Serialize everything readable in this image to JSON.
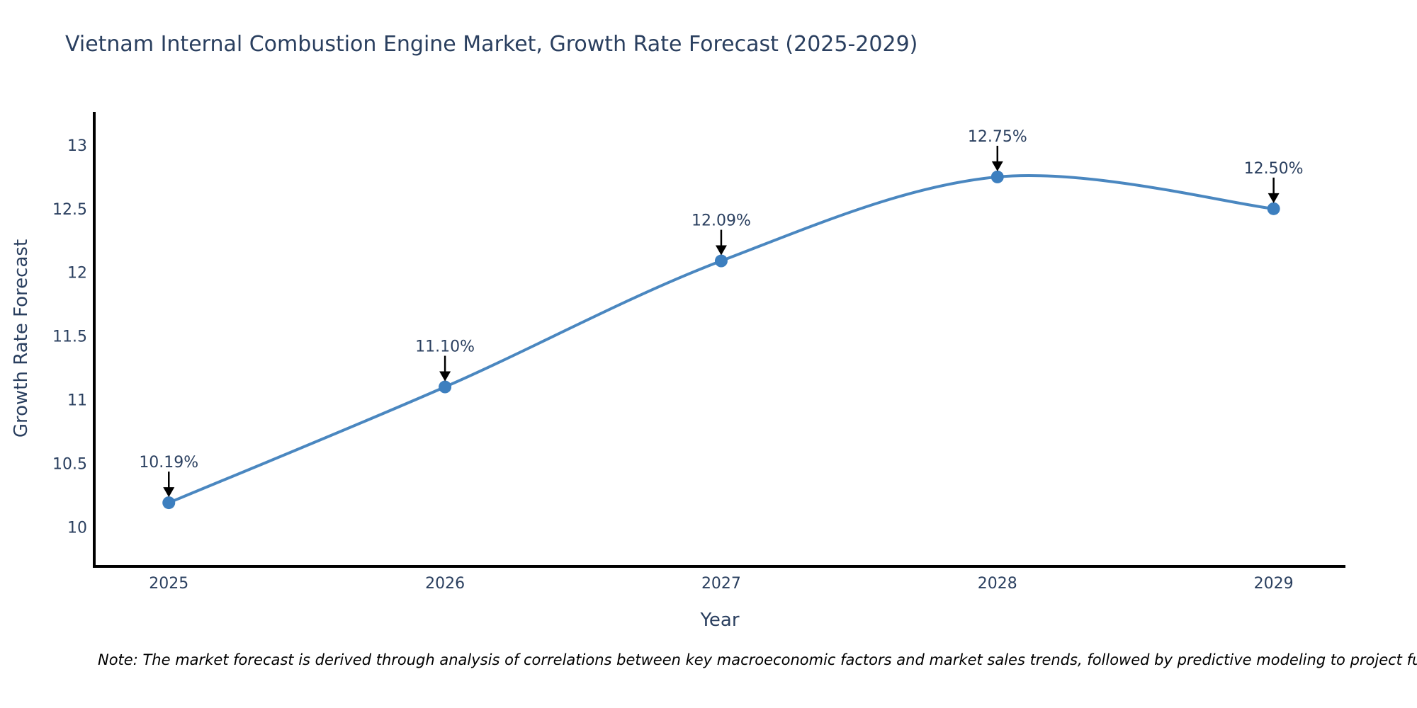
{
  "chart_data": {
    "type": "line",
    "title": "Vietnam Internal Combustion Engine Market, Growth Rate Forecast (2025-2029)",
    "xlabel": "Year",
    "ylabel": "Growth Rate Forecast",
    "x": [
      2025,
      2026,
      2027,
      2028,
      2029
    ],
    "values": [
      10.19,
      11.1,
      12.09,
      12.75,
      12.5
    ],
    "point_labels": [
      "10.19%",
      "11.10%",
      "12.09%",
      "12.75%",
      "12.50%"
    ],
    "xticks": [
      "2025",
      "2026",
      "2027",
      "2028",
      "2029"
    ],
    "yticks": [
      "10",
      "10.5",
      "11",
      "11.5",
      "12",
      "12.5",
      "13"
    ],
    "ytick_values": [
      10,
      10.5,
      11,
      11.5,
      12,
      12.5,
      13
    ],
    "xlim": [
      2024.73,
      2029.26
    ],
    "ylim": [
      9.69,
      13.25
    ],
    "grid": false,
    "legend": "none",
    "line_style": "spline",
    "colors": {
      "line": "#4a87c0",
      "marker": "#3d7fbf",
      "axis": "#000000",
      "tick_text": "#2a3f5f",
      "annotation_text": "#2a3f5f",
      "arrow": "#000000",
      "title_text": "#2a3f5f"
    }
  },
  "note": {
    "text": "Note: The market forecast is derived through analysis of correlations between key macroeconomic factors and market sales trends, followed by predictive modeling to project future sal"
  }
}
